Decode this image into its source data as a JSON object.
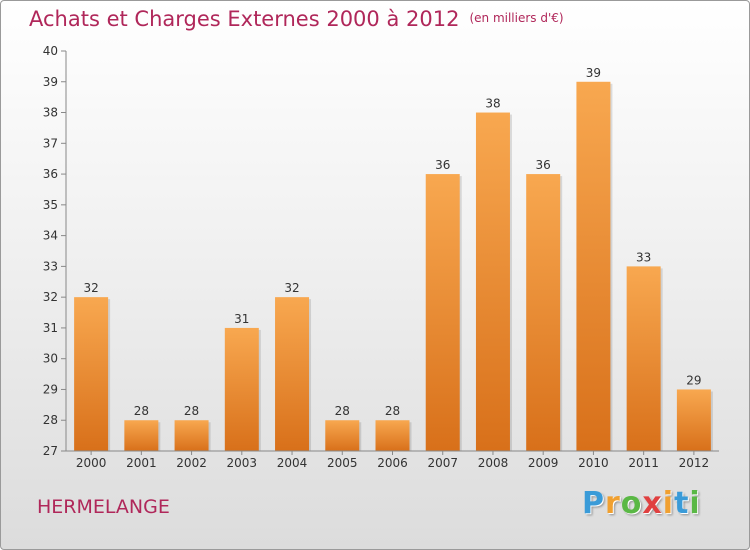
{
  "title": "Achats et Charges Externes 2000 à 2012",
  "unit_note": "(en milliers d'€)",
  "commune": "HERMELANGE",
  "logo": {
    "text": "Proxiti",
    "letters": [
      "P",
      "r",
      "o",
      "x",
      "i",
      "t",
      "i"
    ],
    "colors": [
      "#3a9bd8",
      "#f0a030",
      "#5ab845",
      "#e04040",
      "#f0a030",
      "#3a9bd8",
      "#5ab845"
    ]
  },
  "colors": {
    "title": "#b0275a",
    "bar_top": "#f8a850",
    "bar_bottom": "#d8701a",
    "axis": "#888888"
  },
  "chart_data": {
    "type": "bar",
    "categories": [
      "2000",
      "2001",
      "2002",
      "2003",
      "2004",
      "2005",
      "2006",
      "2007",
      "2008",
      "2009",
      "2010",
      "2011",
      "2012"
    ],
    "values": [
      32,
      28,
      28,
      31,
      32,
      28,
      28,
      36,
      38,
      36,
      39,
      33,
      29
    ],
    "ylim": [
      27,
      40
    ],
    "yticks": [
      27,
      28,
      29,
      30,
      31,
      32,
      33,
      34,
      35,
      36,
      37,
      38,
      39,
      40
    ],
    "grid": false,
    "data_labels": true
  }
}
